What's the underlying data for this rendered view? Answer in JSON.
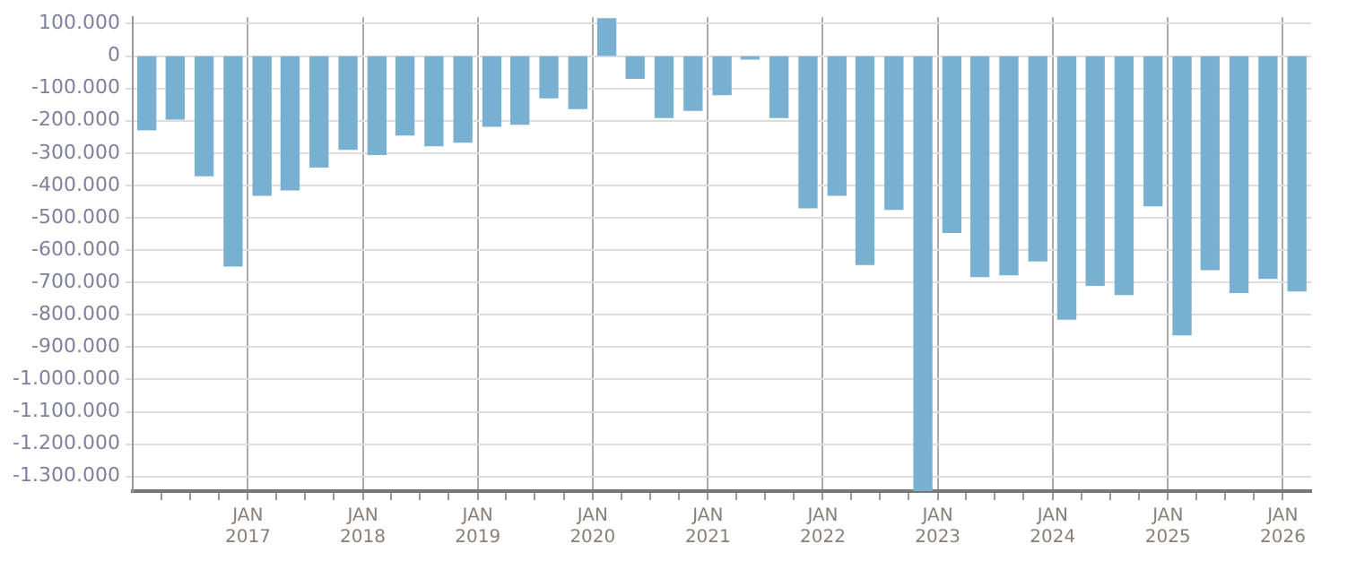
{
  "chart_data": {
    "type": "bar",
    "color": "#78b0d2",
    "x": [
      "2016-02-15",
      "2016-05-15",
      "2016-08-15",
      "2016-11-15",
      "2017-02-15",
      "2017-05-15",
      "2017-08-15",
      "2017-11-15",
      "2018-02-15",
      "2018-05-15",
      "2018-08-15",
      "2018-11-15",
      "2019-02-15",
      "2019-05-15",
      "2019-08-15",
      "2019-11-15",
      "2020-02-15",
      "2020-05-15",
      "2020-08-15",
      "2020-11-15",
      "2021-02-15",
      "2021-05-15",
      "2021-08-15",
      "2021-11-15",
      "2022-02-15",
      "2022-05-15",
      "2022-08-15",
      "2022-11-15",
      "2023-02-15",
      "2023-05-15",
      "2023-08-15",
      "2023-11-15",
      "2024-02-15",
      "2024-05-15",
      "2024-08-15",
      "2024-11-15",
      "2025-02-15",
      "2025-05-15",
      "2025-08-15",
      "2025-11-15",
      "2026-02-15"
    ],
    "values": [
      -228000,
      -195000,
      -370000,
      -649000,
      -430000,
      -414000,
      -343000,
      -288000,
      -304000,
      -244000,
      -277000,
      -266000,
      -217000,
      -211000,
      -129000,
      -162000,
      115000,
      -69000,
      -190000,
      -168000,
      -119000,
      -9000,
      -190000,
      -469000,
      -430000,
      -644000,
      -474000,
      -1345000,
      -545000,
      -682000,
      -676000,
      -633000,
      -813000,
      -709000,
      -737000,
      -463000,
      -862000,
      -660000,
      -731000,
      -687000,
      -726000
    ],
    "ylim": [
      -1345000,
      120000
    ],
    "yticks": [
      {
        "value": 100000,
        "label": "100.000"
      },
      0,
      {
        "value": -100000,
        "label": "-100.000"
      },
      {
        "value": -200000,
        "label": "-200.000"
      },
      {
        "value": -300000,
        "label": "-300.000"
      },
      {
        "value": -400000,
        "label": "-400.000"
      },
      {
        "value": -500000,
        "label": "-500.000"
      },
      {
        "value": -600000,
        "label": "-600.000"
      },
      {
        "value": -700000,
        "label": "-700.000"
      },
      {
        "value": -800000,
        "label": "-800.000"
      },
      {
        "value": -900000,
        "label": "-900.000"
      },
      {
        "value": -1000000,
        "label": "-1.000.000"
      },
      {
        "value": -1100000,
        "label": "-1.100.000"
      },
      {
        "value": -1200000,
        "label": "-1.200.000"
      },
      {
        "value": -1300000,
        "label": "-1.300.000"
      }
    ],
    "xlim": [
      "2016-01-01",
      "2026-04-01"
    ],
    "xticks": [
      {
        "value": "2016-04-01",
        "label": null
      },
      {
        "value": "2016-07-01",
        "label": null
      },
      {
        "value": "2016-10-01",
        "label": null
      },
      {
        "value": "2017-01-01",
        "label": "JAN\n2017"
      },
      {
        "value": "2017-04-01",
        "label": null
      },
      {
        "value": "2017-07-01",
        "label": null
      },
      {
        "value": "2017-10-01",
        "label": null
      },
      {
        "value": "2018-01-01",
        "label": "JAN\n2018"
      },
      {
        "value": "2018-04-01",
        "label": null
      },
      {
        "value": "2018-07-01",
        "label": null
      },
      {
        "value": "2018-10-01",
        "label": null
      },
      {
        "value": "2019-01-01",
        "label": "JAN\n2019"
      },
      {
        "value": "2019-04-01",
        "label": null
      },
      {
        "value": "2019-07-01",
        "label": null
      },
      {
        "value": "2019-10-01",
        "label": null
      },
      {
        "value": "2020-01-01",
        "label": "JAN\n2020"
      },
      {
        "value": "2020-04-01",
        "label": null
      },
      {
        "value": "2020-07-01",
        "label": null
      },
      {
        "value": "2020-10-01",
        "label": null
      },
      {
        "value": "2021-01-01",
        "label": "JAN\n2021"
      },
      {
        "value": "2021-04-01",
        "label": null
      },
      {
        "value": "2021-07-01",
        "label": null
      },
      {
        "value": "2021-10-01",
        "label": null
      },
      {
        "value": "2022-01-01",
        "label": "JAN\n2022"
      },
      {
        "value": "2022-04-01",
        "label": null
      },
      {
        "value": "2022-07-01",
        "label": null
      },
      {
        "value": "2022-10-01",
        "label": null
      },
      {
        "value": "2023-01-01",
        "label": "JAN\n2023"
      },
      {
        "value": "2023-04-01",
        "label": null
      },
      {
        "value": "2023-07-01",
        "label": null
      },
      {
        "value": "2023-10-01",
        "label": null
      },
      {
        "value": "2024-01-01",
        "label": "JAN\n2024"
      },
      {
        "value": "2024-04-01",
        "label": null
      },
      {
        "value": "2024-07-01",
        "label": null
      },
      {
        "value": "2024-10-01",
        "label": null
      },
      {
        "value": "2025-01-01",
        "label": "JAN\n2025"
      },
      {
        "value": "2025-04-01",
        "label": null
      },
      {
        "value": "2025-07-01",
        "label": null
      },
      {
        "value": "2025-10-01",
        "label": null
      },
      {
        "value": "2026-01-01",
        "label": "JAN\n2026"
      }
    ],
    "grid": true,
    "legend": false
  }
}
